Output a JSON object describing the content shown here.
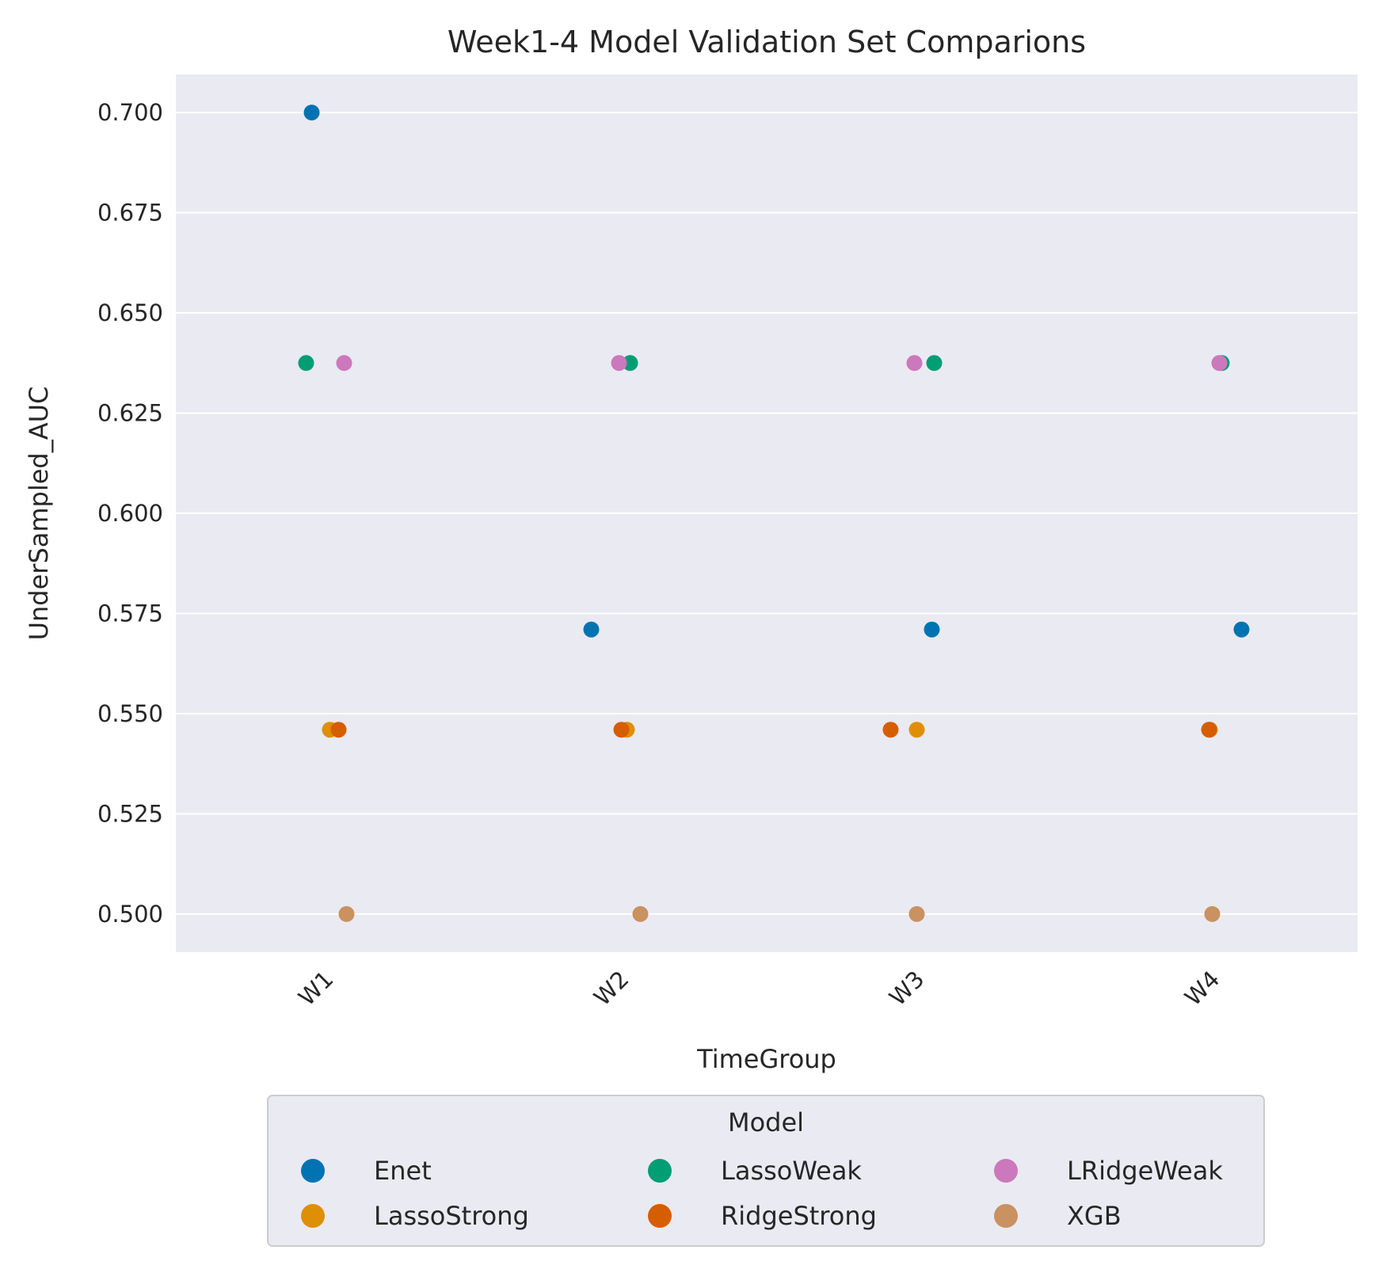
{
  "chart_data": {
    "type": "scatter",
    "title": "Week1-4 Model Validation Set Comparions",
    "xlabel": "TimeGroup",
    "ylabel": "UnderSampled_AUC",
    "categories": [
      "W1",
      "W2",
      "W3",
      "W4"
    ],
    "ylim": [
      0.4905,
      0.7095
    ],
    "yticks": [
      "0.500",
      "0.525",
      "0.550",
      "0.575",
      "0.600",
      "0.625",
      "0.650",
      "0.675",
      "0.700"
    ],
    "grid": true,
    "legend": {
      "title": "Model",
      "placement": "bottom-center"
    },
    "series": [
      {
        "name": "Enet",
        "color": "#0173b2",
        "values": [
          0.7,
          0.571,
          0.571,
          0.571
        ]
      },
      {
        "name": "LassoWeak",
        "color": "#029e73",
        "values": [
          0.6375,
          0.6375,
          0.6375,
          0.6375
        ]
      },
      {
        "name": "LRidgeWeak",
        "color": "#cc78bc",
        "values": [
          0.6375,
          0.6375,
          0.6375,
          0.6375
        ]
      },
      {
        "name": "LassoStrong",
        "color": "#de8f05",
        "values": [
          0.546,
          0.546,
          0.546,
          0.546
        ]
      },
      {
        "name": "RidgeStrong",
        "color": "#d55e00",
        "values": [
          0.546,
          0.546,
          0.546,
          0.546
        ]
      },
      {
        "name": "XGB",
        "color": "#ca9161",
        "values": [
          0.5,
          0.5,
          0.5,
          0.5
        ]
      }
    ]
  }
}
